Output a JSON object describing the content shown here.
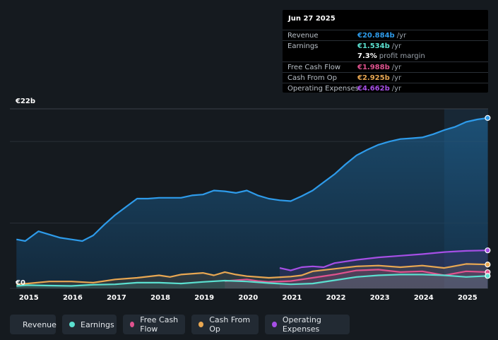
{
  "tooltip": {
    "date": "Jun 27 2025",
    "rows": [
      {
        "label": "Revenue",
        "value": "€20.884b",
        "unit": "/yr",
        "color": "#2e9bea"
      },
      {
        "label": "Earnings",
        "value": "€1.534b",
        "unit": "/yr",
        "color": "#5be0d0"
      },
      {
        "label": "",
        "value": "7.3%",
        "unit": "profit margin",
        "color": "#ffffff"
      },
      {
        "label": "Free Cash Flow",
        "value": "€1.988b",
        "unit": "/yr",
        "color": "#e0538f"
      },
      {
        "label": "Cash From Op",
        "value": "€2.925b",
        "unit": "/yr",
        "color": "#e8a752"
      },
      {
        "label": "Operating Expenses",
        "value": "€4.662b",
        "unit": "/yr",
        "color": "#a64fe6"
      }
    ]
  },
  "legend": [
    {
      "label": "Revenue",
      "color": "#2e9bea"
    },
    {
      "label": "Earnings",
      "color": "#5be0d0"
    },
    {
      "label": "Free Cash Flow",
      "color": "#e0538f"
    },
    {
      "label": "Cash From Op",
      "color": "#e8a752"
    },
    {
      "label": "Operating Expenses",
      "color": "#a64fe6"
    }
  ],
  "chart_data": {
    "type": "area",
    "title": "",
    "xlabel": "",
    "ylabel": "",
    "y_top_label": "€22b",
    "y_bottom_label": "€0",
    "ylim": [
      0,
      22
    ],
    "xlim": [
      2014.6,
      2025.5
    ],
    "xticks": [
      "2015",
      "2016",
      "2017",
      "2018",
      "2019",
      "2020",
      "2021",
      "2022",
      "2023",
      "2024",
      "2025"
    ],
    "highlight_start": 2024.5,
    "series": [
      {
        "name": "Revenue",
        "color": "#2e9bea",
        "x": [
          2014.75,
          2014.95,
          2015.25,
          2015.5,
          2015.75,
          2016.0,
          2016.25,
          2016.5,
          2016.75,
          2017.0,
          2017.25,
          2017.5,
          2017.75,
          2018.0,
          2018.25,
          2018.5,
          2018.75,
          2019.0,
          2019.25,
          2019.5,
          2019.75,
          2020.0,
          2020.25,
          2020.5,
          2020.75,
          2021.0,
          2021.25,
          2021.5,
          2021.75,
          2022.0,
          2022.25,
          2022.5,
          2022.75,
          2023.0,
          2023.25,
          2023.5,
          2023.75,
          2024.0,
          2024.25,
          2024.5,
          2024.75,
          2025.0,
          2025.25,
          2025.49
        ],
        "values": [
          6.0,
          5.8,
          7.0,
          6.6,
          6.2,
          6.0,
          5.8,
          6.5,
          7.8,
          9.0,
          10.0,
          11.0,
          11.0,
          11.1,
          11.1,
          11.1,
          11.4,
          11.5,
          12.0,
          11.9,
          11.7,
          12.0,
          11.4,
          11.0,
          10.8,
          10.7,
          11.3,
          12.0,
          13.0,
          14.0,
          15.2,
          16.3,
          17.0,
          17.6,
          18.0,
          18.3,
          18.4,
          18.5,
          18.9,
          19.4,
          19.8,
          20.4,
          20.7,
          20.884
        ]
      },
      {
        "name": "Operating Expenses",
        "color": "#a64fe6",
        "x": [
          2020.75,
          2021.0,
          2021.25,
          2021.5,
          2021.75,
          2022.0,
          2022.5,
          2023.0,
          2023.5,
          2024.0,
          2024.5,
          2025.0,
          2025.49
        ],
        "values": [
          2.5,
          2.2,
          2.6,
          2.7,
          2.6,
          3.1,
          3.5,
          3.8,
          4.0,
          4.2,
          4.45,
          4.6,
          4.662
        ]
      },
      {
        "name": "Cash From Op",
        "color": "#e8a752",
        "x": [
          2014.75,
          2015.0,
          2015.5,
          2016.0,
          2016.5,
          2017.0,
          2017.5,
          2018.0,
          2018.25,
          2018.5,
          2019.0,
          2019.25,
          2019.5,
          2019.75,
          2020.0,
          2020.5,
          2021.0,
          2021.25,
          2021.5,
          2022.0,
          2022.5,
          2023.0,
          2023.5,
          2024.0,
          2024.5,
          2025.0,
          2025.49
        ],
        "values": [
          0.5,
          0.6,
          0.85,
          0.85,
          0.7,
          1.1,
          1.3,
          1.6,
          1.4,
          1.7,
          1.9,
          1.6,
          2.0,
          1.7,
          1.5,
          1.3,
          1.45,
          1.6,
          2.1,
          2.4,
          2.7,
          2.8,
          2.6,
          2.8,
          2.5,
          3.0,
          2.925
        ]
      },
      {
        "name": "Free Cash Flow",
        "color": "#e0538f",
        "x": [
          2019.5,
          2019.75,
          2020.0,
          2020.25,
          2020.5,
          2021.0,
          2021.5,
          2022.0,
          2022.5,
          2023.0,
          2023.5,
          2024.0,
          2024.5,
          2025.0,
          2025.49
        ],
        "values": [
          0.9,
          1.0,
          1.1,
          0.9,
          0.8,
          0.9,
          1.3,
          1.7,
          2.2,
          2.3,
          2.0,
          2.1,
          1.6,
          2.1,
          1.988
        ]
      },
      {
        "name": "Earnings",
        "color": "#5be0d0",
        "x": [
          2014.75,
          2015.0,
          2015.5,
          2016.0,
          2016.5,
          2017.0,
          2017.5,
          2018.0,
          2018.5,
          2019.0,
          2019.5,
          2020.0,
          2020.5,
          2021.0,
          2021.5,
          2022.0,
          2022.5,
          2023.0,
          2023.5,
          2024.0,
          2024.5,
          2025.0,
          2025.49
        ],
        "values": [
          0.3,
          0.4,
          0.35,
          0.3,
          0.45,
          0.5,
          0.7,
          0.7,
          0.6,
          0.8,
          0.95,
          0.85,
          0.65,
          0.5,
          0.6,
          1.0,
          1.4,
          1.6,
          1.7,
          1.7,
          1.6,
          1.4,
          1.534
        ]
      }
    ]
  }
}
